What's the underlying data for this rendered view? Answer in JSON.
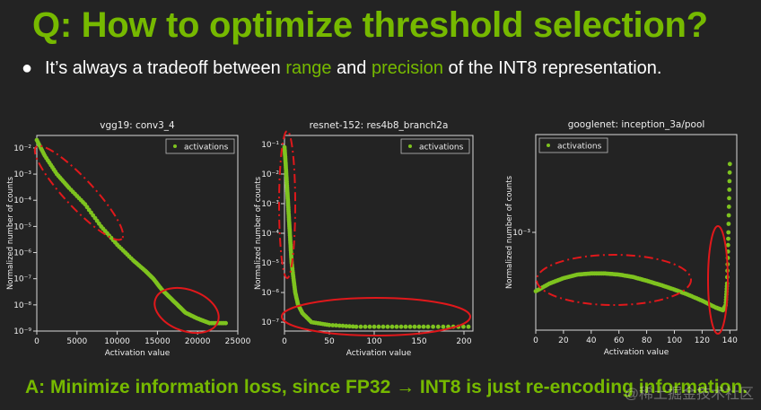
{
  "slide": {
    "title": "Q: How to optimize threshold selection?",
    "bullet_marker": "●",
    "bullet_parts": [
      "It’s always a tradeoff between ",
      "range",
      " and ",
      "precision",
      " of the INT8 representation."
    ],
    "answer": "A: Minimize information loss, since FP32 → INT8 is just re-encoding information.",
    "watermark": "@稀土掘金技术社区"
  },
  "colors": {
    "accent": "#76b900",
    "background": "#232323",
    "highlight_ellipse": "#e0181b",
    "marker": "#7ec31f"
  },
  "chart_data": [
    {
      "type": "scatter",
      "title": "vgg19: conv3_4",
      "xlabel": "Activation value",
      "ylabel": "Normalized number of counts",
      "legend": "activations",
      "legend_position": "top-right",
      "yscale": "log",
      "xlim": [
        0,
        25000
      ],
      "ylim": [
        1e-09,
        0.03
      ],
      "xticks": [
        0,
        5000,
        10000,
        15000,
        20000,
        25000
      ],
      "xtick_labels": [
        "0",
        "5000",
        "10000",
        "15000",
        "20000",
        "25000"
      ],
      "yticks": [
        1e-09,
        1e-08,
        1e-07,
        1e-06,
        1e-05,
        0.0001,
        0.001,
        0.01
      ],
      "ytick_labels": [
        "10⁻⁹",
        "10⁻⁸",
        "10⁻⁷",
        "10⁻⁶",
        "10⁻⁵",
        "10⁻⁴",
        "10⁻³",
        "10⁻²"
      ],
      "series": [
        {
          "x": [
            0,
            1000,
            2500,
            4000,
            6000,
            8000,
            10000,
            12000,
            13500,
            14500,
            15500,
            16500,
            17500,
            18500,
            20000,
            21500,
            23500
          ],
          "y": [
            0.02,
            0.005,
            0.001,
            0.0003,
            7e-05,
            1e-05,
            2e-06,
            5e-07,
            2e-07,
            1e-07,
            4e-08,
            2e-08,
            1e-08,
            5e-09,
            3e-09,
            2e-09,
            2e-09
          ]
        }
      ]
    },
    {
      "type": "scatter",
      "title": "resnet-152: res4b8_branch2a",
      "xlabel": "Activation value",
      "ylabel": "Normalized number of counts",
      "legend": "activations",
      "legend_position": "top-right",
      "yscale": "log",
      "xlim": [
        0,
        210
      ],
      "ylim": [
        5e-08,
        0.2
      ],
      "xticks": [
        0,
        50,
        100,
        150,
        200
      ],
      "xtick_labels": [
        "0",
        "50",
        "100",
        "150",
        "200"
      ],
      "yticks": [
        1e-07,
        1e-06,
        1e-05,
        0.0001,
        0.001,
        0.01,
        0.1
      ],
      "ytick_labels": [
        "10⁻⁷",
        "10⁻⁶",
        "10⁻⁵",
        "10⁻⁴",
        "10⁻³",
        "10⁻²",
        "10⁻¹"
      ],
      "series": [
        {
          "x": [
            0,
            1,
            2,
            3,
            4,
            5,
            6,
            7,
            8,
            10,
            12,
            15,
            20,
            30,
            50,
            80,
            120,
            160,
            205
          ],
          "y": [
            0.08,
            0.03,
            0.01,
            0.003,
            0.001,
            0.0003,
            0.0001,
            3e-05,
            1e-05,
            3e-06,
            1e-06,
            4e-07,
            2e-07,
            1e-07,
            8e-08,
            7e-08,
            7e-08,
            7e-08,
            7e-08
          ]
        }
      ]
    },
    {
      "type": "scatter",
      "title": "googlenet: inception_3a/pool",
      "xlabel": "Activation value",
      "ylabel": "Normalized number of counts",
      "legend": "activations",
      "legend_position": "top-left",
      "yscale": "log",
      "xlim": [
        0,
        145
      ],
      "ylim": [
        0.0001,
        0.01
      ],
      "xticks": [
        0,
        20,
        40,
        60,
        80,
        100,
        120,
        140
      ],
      "xtick_labels": [
        "0",
        "20",
        "40",
        "60",
        "80",
        "100",
        "120",
        "140"
      ],
      "yticks": [
        0.001
      ],
      "ytick_labels": [
        "10⁻³"
      ],
      "series": [
        {
          "x": [
            0,
            10,
            20,
            30,
            40,
            50,
            60,
            70,
            80,
            90,
            100,
            110,
            120,
            130,
            135,
            137,
            138,
            139,
            140
          ],
          "y": [
            0.00025,
            0.0003,
            0.00034,
            0.00037,
            0.00038,
            0.00038,
            0.00037,
            0.00035,
            0.00032,
            0.00029,
            0.00026,
            0.00023,
            0.0002,
            0.00017,
            0.00016,
            0.00018,
            0.0003,
            0.001,
            0.005
          ]
        }
      ]
    }
  ]
}
